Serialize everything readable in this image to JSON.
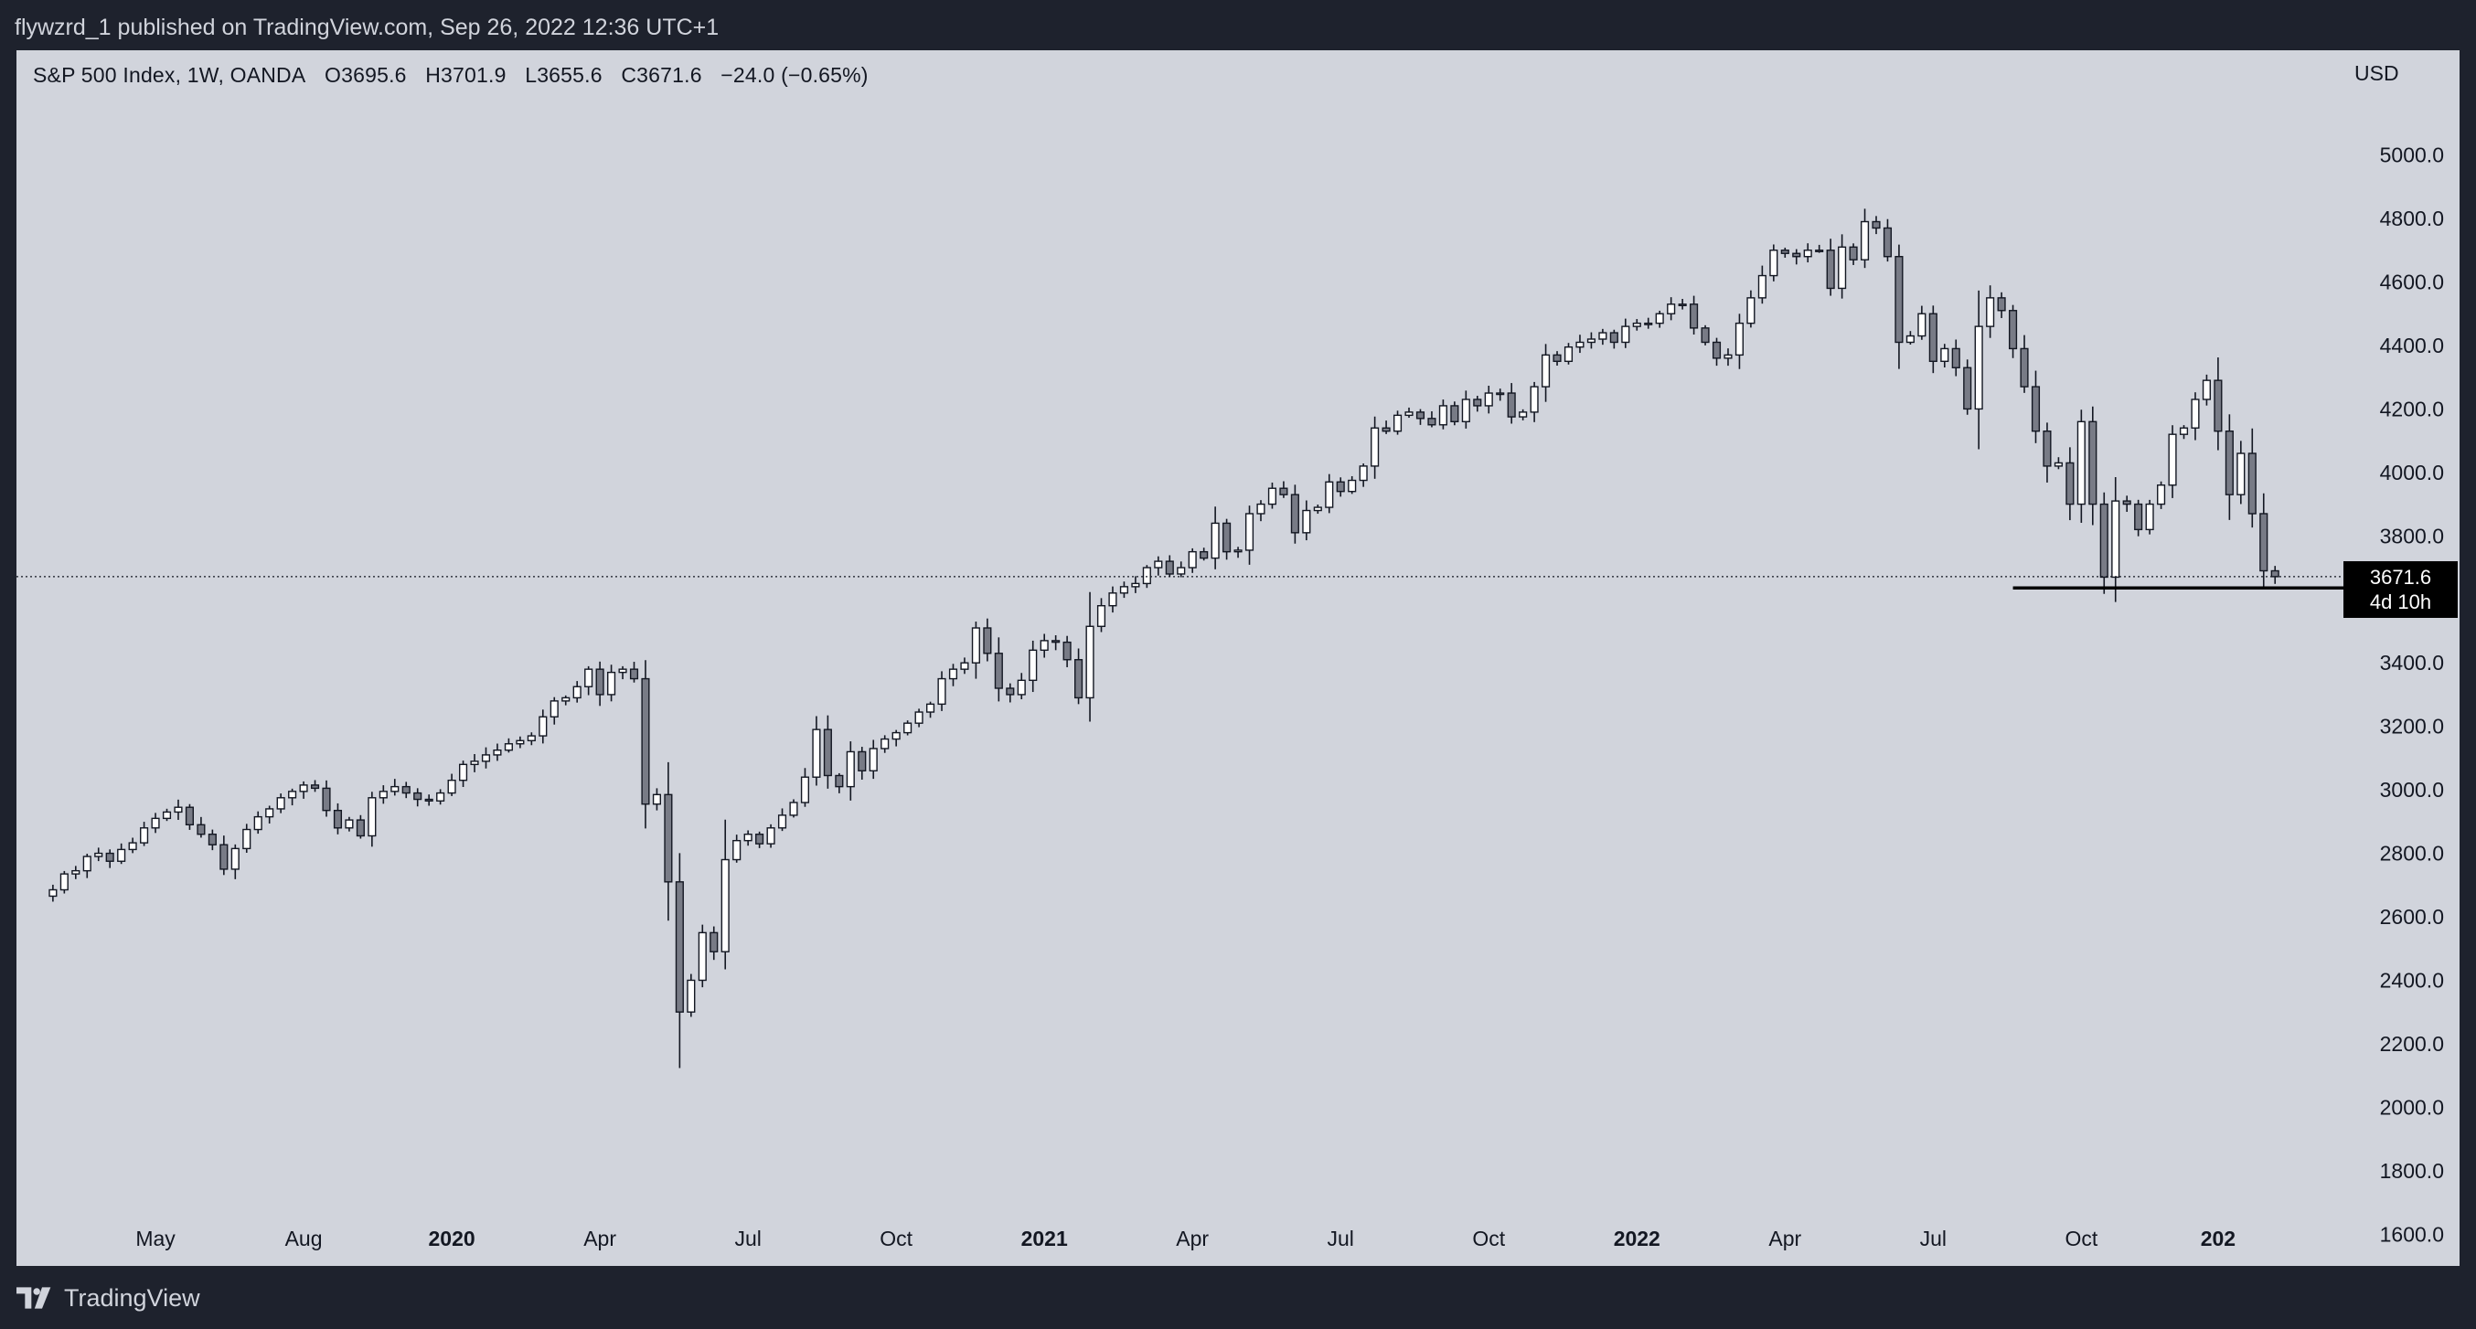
{
  "header": {
    "published_by": "flywzrd_1 published on TradingView.com, Sep 26, 2022 12:36 UTC+1"
  },
  "legend": {
    "symbol": "S&P 500 Index, 1W, OANDA",
    "open": "O3695.6",
    "high": "H3701.9",
    "low": "L3655.6",
    "close": "C3671.6",
    "change": "−24.0 (−0.65%)"
  },
  "price_tag": {
    "price": "3671.6",
    "countdown": "4d 10h"
  },
  "branding": {
    "name": "TradingView",
    "icon": "tradingview-logo-icon"
  },
  "colors": {
    "chart_bg": "#d1d4dc",
    "page_bg": "#1e222d",
    "candle_up_fill": "#ffffff",
    "candle_down_fill": "#787b86",
    "wick": "#131722"
  },
  "chart_data": {
    "type": "candlestick",
    "title": "S&P 500 Index, 1W, OANDA",
    "currency": "USD",
    "interval": "1W",
    "x_axis_labels": [
      {
        "label": "May",
        "week": 9
      },
      {
        "label": "Aug",
        "week": 22
      },
      {
        "label": "2020",
        "week": 35,
        "bold": true
      },
      {
        "label": "Apr",
        "week": 48
      },
      {
        "label": "Jul",
        "week": 61
      },
      {
        "label": "Oct",
        "week": 74
      },
      {
        "label": "2021",
        "week": 87,
        "bold": true
      },
      {
        "label": "Apr",
        "week": 100
      },
      {
        "label": "Jul",
        "week": 113
      },
      {
        "label": "Oct",
        "week": 126
      },
      {
        "label": "2022",
        "week": 139,
        "bold": true
      },
      {
        "label": "Apr",
        "week": 152
      },
      {
        "label": "Jul",
        "week": 165
      },
      {
        "label": "Oct",
        "week": 178
      },
      {
        "label": "202",
        "week": 190,
        "bold": true
      }
    ],
    "y_ticks": [
      1600,
      1800,
      2000,
      2200,
      2400,
      2600,
      2800,
      3000,
      3200,
      3400,
      3800,
      4000,
      4200,
      4400,
      4600,
      4800,
      5000
    ],
    "y_range": [
      1500,
      5330
    ],
    "x_range_weeks": [
      -3.2,
      201
    ],
    "last_price_line": 3671.6,
    "support_line": {
      "price": 3636,
      "from_week": 172,
      "to_week": 203
    },
    "weekly_closes": [
      2685,
      2735,
      2745,
      2790,
      2800,
      2775,
      2812,
      2833,
      2880,
      2910,
      2930,
      2945,
      2890,
      2860,
      2827,
      2750,
      2815,
      2875,
      2915,
      2940,
      2975,
      2995,
      3015,
      3005,
      2935,
      2880,
      2905,
      2855,
      2975,
      2995,
      3010,
      2990,
      2970,
      2965,
      2990,
      3030,
      3080,
      3090,
      3110,
      3125,
      3145,
      3155,
      3170,
      3230,
      3280,
      3290,
      3325,
      3380,
      3300,
      3370,
      3380,
      3350,
      2955,
      2985,
      2710,
      2300,
      2400,
      2550,
      2490,
      2780,
      2840,
      2860,
      2830,
      2880,
      2920,
      2960,
      3040,
      3190,
      3045,
      3010,
      3120,
      3060,
      3130,
      3160,
      3180,
      3210,
      3245,
      3270,
      3350,
      3380,
      3400,
      3510,
      3430,
      3320,
      3300,
      3345,
      3440,
      3470,
      3465,
      3410,
      3290,
      3515,
      3580,
      3620,
      3640,
      3650,
      3700,
      3720,
      3680,
      3700,
      3750,
      3730,
      3840,
      3750,
      3755,
      3870,
      3900,
      3950,
      3930,
      3810,
      3880,
      3890,
      3970,
      3940,
      3975,
      4020,
      4140,
      4130,
      4180,
      4190,
      4170,
      4150,
      4210,
      4160,
      4230,
      4210,
      4250,
      4250,
      4175,
      4190,
      4270,
      4370,
      4350,
      4395,
      4410,
      4420,
      4440,
      4410,
      4460,
      4470,
      4470,
      4500,
      4530,
      4530,
      4455,
      4410,
      4360,
      4370,
      4470,
      4550,
      4620,
      4700,
      4690,
      4680,
      4700,
      4700,
      4580,
      4710,
      4670,
      4790,
      4770,
      4680,
      4410,
      4430,
      4500,
      4350,
      4390,
      4330,
      4200,
      4460,
      4550,
      4510,
      4390,
      4270,
      4130,
      4020,
      4030,
      3900,
      4160,
      3900,
      3670,
      3910,
      3900,
      3820,
      3900,
      3960,
      4120,
      4140,
      4230,
      4290,
      4130,
      3930,
      4060,
      3870,
      3690,
      3671.6
    ]
  }
}
